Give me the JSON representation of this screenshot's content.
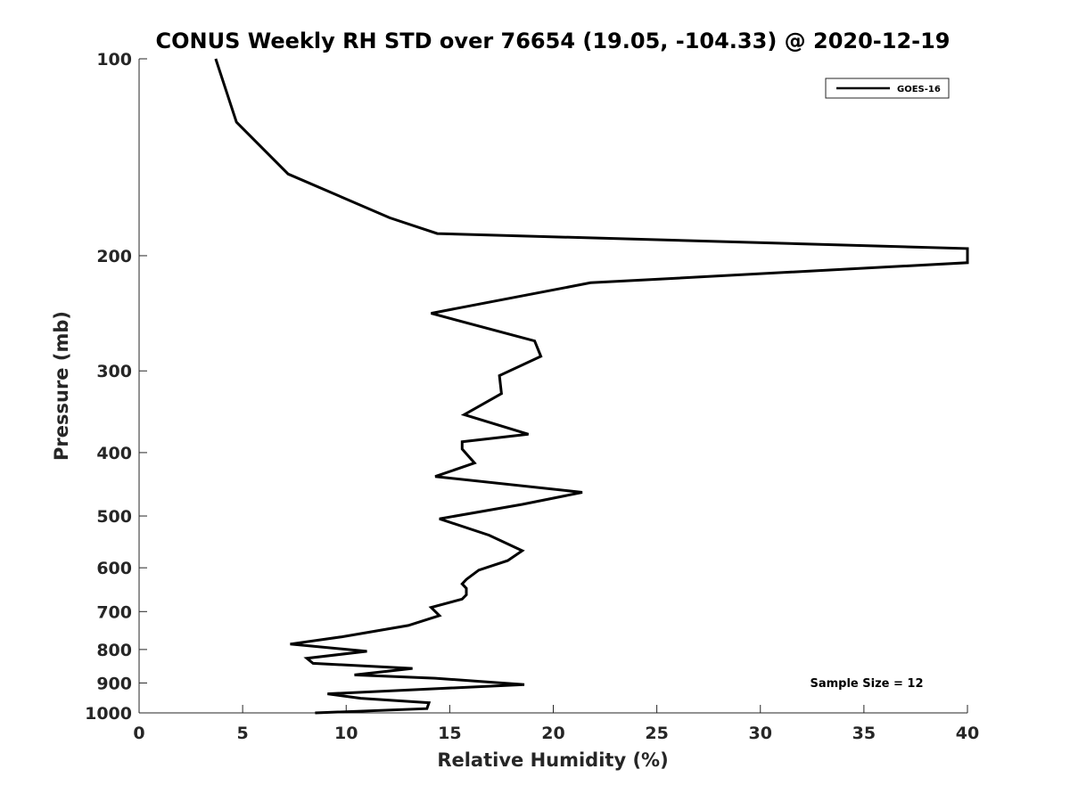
{
  "chart_data": {
    "type": "line",
    "title": "CONUS Weekly RH STD over 76654 (19.05, -104.33) @ 2020-12-19",
    "xlabel": "Relative Humidity (%)",
    "ylabel": "Pressure (mb)",
    "xlim": [
      0,
      40
    ],
    "ylim": [
      100,
      1000
    ],
    "yscale": "log",
    "grid": false,
    "x_ticks": [
      0,
      5,
      10,
      15,
      20,
      25,
      30,
      35,
      40
    ],
    "x_tick_labels": [
      "0",
      "5",
      "10",
      "15",
      "20",
      "25",
      "30",
      "35",
      "40"
    ],
    "y_ticks": [
      100,
      200,
      300,
      400,
      500,
      600,
      700,
      800,
      900,
      1000
    ],
    "y_tick_labels": [
      "100",
      "200",
      "300",
      "400",
      "500",
      "600",
      "700",
      "800",
      "900",
      "1000"
    ],
    "legend": {
      "position": "top-right",
      "entries": [
        "GOES-16"
      ]
    },
    "annotation": "Sample Size = 12",
    "series": [
      {
        "name": "GOES-16",
        "color": "#000000",
        "x": [
          3.7,
          4.7,
          7.2,
          12.1,
          14.4,
          40.0,
          40.0,
          21.8,
          14.1,
          19.1,
          19.4,
          17.4,
          17.5,
          15.7,
          18.8,
          15.6,
          15.6,
          16.2,
          14.3,
          21.4,
          18.5,
          14.5,
          16.9,
          18.5,
          17.8,
          16.4,
          15.8,
          15.6,
          15.8,
          15.8,
          15.6,
          14.1,
          14.5,
          13.0,
          9.8,
          7.3,
          11.0,
          8.1,
          8.4,
          13.2,
          10.4,
          14.3,
          18.6,
          9.1,
          10.7,
          14.0,
          13.9,
          8.5
        ],
        "y": [
          100,
          125,
          150,
          175,
          185,
          195,
          205,
          220,
          245,
          270,
          285,
          305,
          325,
          350,
          375,
          385,
          395,
          415,
          435,
          460,
          480,
          505,
          535,
          565,
          585,
          605,
          625,
          635,
          645,
          660,
          670,
          690,
          710,
          735,
          765,
          785,
          805,
          825,
          840,
          855,
          875,
          885,
          905,
          935,
          950,
          965,
          985,
          1000
        ]
      }
    ]
  }
}
